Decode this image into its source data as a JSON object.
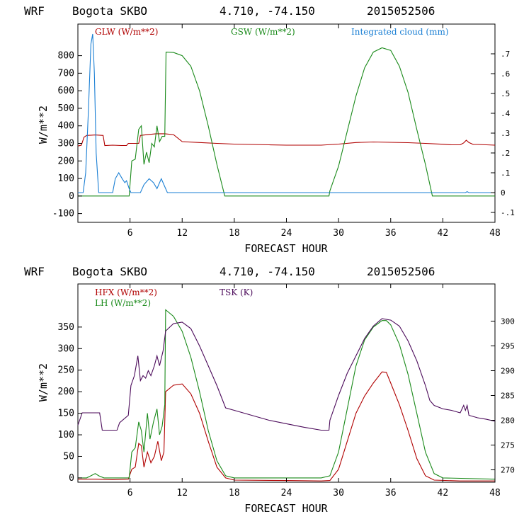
{
  "chart_data": [
    {
      "type": "line",
      "header": {
        "model": "WRF",
        "station": "Bogota SKBO",
        "coords": "4.710, -74.150",
        "run": "2015052506"
      },
      "xlabel": "FORECAST HOUR",
      "ylabel": "W/m**2",
      "xlim": [
        0,
        48
      ],
      "x_ticks": [
        "6",
        "12",
        "18",
        "24",
        "30",
        "36",
        "42",
        "48"
      ],
      "ylim": [
        -150,
        980
      ],
      "y_ticks": [
        "-100",
        "0",
        "100",
        "200",
        "300",
        "400",
        "500",
        "600",
        "700",
        "800"
      ],
      "y2lim": [
        -0.15,
        0.85
      ],
      "y2_ticks": [
        "-.1",
        "0",
        ".1",
        ".2",
        ".3",
        ".4",
        ".5",
        ".6",
        ".7"
      ],
      "legend": [
        {
          "label": "GLW (W/m**2)",
          "color": "#b00000"
        },
        {
          "label": "GSW (W/m**2)",
          "color": "#1a8a1a"
        },
        {
          "label": "Integrated cloud (mm)",
          "color": "#1a7fd4"
        }
      ],
      "series": [
        {
          "name": "GLW (W/m**2)",
          "color": "#b00000",
          "axis": "left",
          "points": [
            [
              0,
              285
            ],
            [
              0.4,
              290
            ],
            [
              0.7,
              335
            ],
            [
              1,
              345
            ],
            [
              2,
              348
            ],
            [
              2.9,
              345
            ],
            [
              3.1,
              288
            ],
            [
              4,
              290
            ],
            [
              5,
              288
            ],
            [
              5.6,
              288
            ],
            [
              5.8,
              300
            ],
            [
              6.5,
              300
            ],
            [
              7,
              300
            ],
            [
              7.2,
              345
            ],
            [
              8,
              350
            ],
            [
              9,
              355
            ],
            [
              10,
              355
            ],
            [
              11,
              350
            ],
            [
              12,
              310
            ],
            [
              14,
              305
            ],
            [
              16,
              300
            ],
            [
              18,
              296
            ],
            [
              20,
              294
            ],
            [
              22,
              292
            ],
            [
              24,
              290
            ],
            [
              26,
              290
            ],
            [
              28,
              290
            ],
            [
              30,
              296
            ],
            [
              32,
              305
            ],
            [
              34,
              308
            ],
            [
              36,
              306
            ],
            [
              38,
              304
            ],
            [
              40,
              300
            ],
            [
              42,
              295
            ],
            [
              43,
              292
            ],
            [
              44,
              292
            ],
            [
              44.4,
              303
            ],
            [
              44.7,
              318
            ],
            [
              45,
              305
            ],
            [
              45.5,
              294
            ],
            [
              46,
              294
            ],
            [
              48,
              290
            ]
          ]
        },
        {
          "name": "GSW (W/m**2)",
          "color": "#1a8a1a",
          "axis": "left",
          "points": [
            [
              0,
              0
            ],
            [
              5.9,
              0
            ],
            [
              6.2,
              200
            ],
            [
              6.6,
              210
            ],
            [
              7.0,
              380
            ],
            [
              7.3,
              400
            ],
            [
              7.6,
              180
            ],
            [
              7.9,
              250
            ],
            [
              8.2,
              190
            ],
            [
              8.5,
              300
            ],
            [
              8.8,
              280
            ],
            [
              9.1,
              400
            ],
            [
              9.4,
              310
            ],
            [
              9.7,
              340
            ],
            [
              10.0,
              340
            ],
            [
              10.15,
              820
            ],
            [
              11,
              818
            ],
            [
              12,
              800
            ],
            [
              13,
              740
            ],
            [
              14,
              600
            ],
            [
              15,
              400
            ],
            [
              16,
              180
            ],
            [
              16.9,
              0
            ],
            [
              28.9,
              0
            ],
            [
              29,
              30
            ],
            [
              30,
              170
            ],
            [
              31,
              370
            ],
            [
              32,
              570
            ],
            [
              33,
              730
            ],
            [
              34,
              820
            ],
            [
              35,
              845
            ],
            [
              36,
              830
            ],
            [
              37,
              740
            ],
            [
              38,
              590
            ],
            [
              39,
              380
            ],
            [
              40,
              180
            ],
            [
              40.8,
              0
            ],
            [
              48,
              0
            ]
          ]
        },
        {
          "name": "Integrated cloud (mm)",
          "color": "#1a7fd4",
          "axis": "right",
          "points": [
            [
              0,
              0
            ],
            [
              0.6,
              0
            ],
            [
              0.9,
              0.1
            ],
            [
              1.2,
              0.4
            ],
            [
              1.5,
              0.75
            ],
            [
              1.7,
              0.8
            ],
            [
              1.9,
              0.6
            ],
            [
              2.1,
              0.2
            ],
            [
              2.4,
              0
            ],
            [
              4,
              0
            ],
            [
              4.3,
              0.07
            ],
            [
              4.7,
              0.1
            ],
            [
              5.1,
              0.07
            ],
            [
              5.4,
              0.05
            ],
            [
              5.6,
              0.06
            ],
            [
              5.9,
              0.02
            ],
            [
              6.1,
              0
            ],
            [
              7.2,
              0
            ],
            [
              7.6,
              0.04
            ],
            [
              8.2,
              0.07
            ],
            [
              8.7,
              0.05
            ],
            [
              9.1,
              0.02
            ],
            [
              9.6,
              0.07
            ],
            [
              10.0,
              0.03
            ],
            [
              10.3,
              0
            ],
            [
              44.6,
              0
            ],
            [
              44.8,
              0.005
            ],
            [
              45,
              0
            ],
            [
              48,
              0
            ]
          ]
        }
      ]
    },
    {
      "type": "line",
      "header": {
        "model": "WRF",
        "station": "Bogota SKBO",
        "coords": "4.710, -74.150",
        "run": "2015052506"
      },
      "xlabel": "FORECAST HOUR",
      "ylabel": "W/m**2",
      "xlim": [
        0,
        48
      ],
      "x_ticks": [
        "6",
        "12",
        "18",
        "24",
        "30",
        "36",
        "42",
        "48"
      ],
      "ylim": [
        -10,
        450
      ],
      "y_ticks": [
        "0",
        "50",
        "100",
        "150",
        "200",
        "250",
        "300",
        "350"
      ],
      "y2lim": [
        267.5,
        307.5
      ],
      "y2_ticks": [
        "270",
        "275",
        "280",
        "285",
        "290",
        "295",
        "300"
      ],
      "legend": [
        {
          "label": "HFX (W/m**2)",
          "color": "#b00000"
        },
        {
          "label": "LH (W/m**2)",
          "color": "#1a8a1a"
        },
        {
          "label": "TSK (K)",
          "color": "#4b0a5a"
        }
      ],
      "series": [
        {
          "name": "HFX (W/m**2)",
          "color": "#b00000",
          "axis": "left",
          "points": [
            [
              0,
              -3
            ],
            [
              2,
              -3
            ],
            [
              4,
              -4
            ],
            [
              5.8,
              -3
            ],
            [
              6.2,
              20
            ],
            [
              6.6,
              25
            ],
            [
              7.0,
              80
            ],
            [
              7.3,
              75
            ],
            [
              7.6,
              25
            ],
            [
              8,
              60
            ],
            [
              8.4,
              35
            ],
            [
              8.8,
              50
            ],
            [
              9.2,
              85
            ],
            [
              9.6,
              40
            ],
            [
              9.9,
              60
            ],
            [
              10.1,
              200
            ],
            [
              11,
              215
            ],
            [
              12,
              218
            ],
            [
              13,
              195
            ],
            [
              14,
              150
            ],
            [
              15,
              85
            ],
            [
              16,
              25
            ],
            [
              17,
              0
            ],
            [
              18,
              -5
            ],
            [
              24,
              -6
            ],
            [
              28,
              -7
            ],
            [
              29,
              -6
            ],
            [
              30,
              20
            ],
            [
              31,
              85
            ],
            [
              32,
              150
            ],
            [
              33,
              190
            ],
            [
              34,
              220
            ],
            [
              35,
              246
            ],
            [
              35.5,
              245
            ],
            [
              36,
              220
            ],
            [
              37,
              170
            ],
            [
              38,
              110
            ],
            [
              39,
              45
            ],
            [
              40,
              5
            ],
            [
              41,
              -5
            ],
            [
              44,
              -7
            ],
            [
              48,
              -7
            ]
          ]
        },
        {
          "name": "LH (W/m**2)",
          "color": "#1a8a1a",
          "axis": "left",
          "points": [
            [
              0,
              0
            ],
            [
              1,
              0
            ],
            [
              1.5,
              5
            ],
            [
              2,
              10
            ],
            [
              2.4,
              5
            ],
            [
              3,
              0
            ],
            [
              5.9,
              0
            ],
            [
              6.2,
              60
            ],
            [
              6.6,
              70
            ],
            [
              7,
              130
            ],
            [
              7.3,
              110
            ],
            [
              7.6,
              60
            ],
            [
              8,
              150
            ],
            [
              8.3,
              90
            ],
            [
              8.7,
              130
            ],
            [
              9.1,
              160
            ],
            [
              9.4,
              100
            ],
            [
              9.7,
              120
            ],
            [
              10,
              170
            ],
            [
              10.1,
              390
            ],
            [
              11,
              375
            ],
            [
              12,
              340
            ],
            [
              13,
              280
            ],
            [
              14,
              200
            ],
            [
              15,
              110
            ],
            [
              16,
              40
            ],
            [
              17,
              5
            ],
            [
              18,
              0
            ],
            [
              28,
              0
            ],
            [
              29,
              5
            ],
            [
              30,
              60
            ],
            [
              31,
              160
            ],
            [
              32,
              260
            ],
            [
              33,
              320
            ],
            [
              34,
              350
            ],
            [
              35,
              365
            ],
            [
              35.5,
              365
            ],
            [
              36,
              355
            ],
            [
              37,
              310
            ],
            [
              38,
              240
            ],
            [
              39,
              150
            ],
            [
              40,
              60
            ],
            [
              41,
              10
            ],
            [
              42,
              0
            ],
            [
              48,
              -3
            ]
          ]
        },
        {
          "name": "TSK (K)",
          "color": "#4b0a5a",
          "axis": "right",
          "points": [
            [
              0,
              279
            ],
            [
              0.5,
              281.5
            ],
            [
              1,
              281.5
            ],
            [
              2.5,
              281.5
            ],
            [
              2.8,
              278
            ],
            [
              3.5,
              278
            ],
            [
              4.5,
              278
            ],
            [
              4.8,
              279.5
            ],
            [
              5.8,
              281
            ],
            [
              6.1,
              287
            ],
            [
              6.5,
              289
            ],
            [
              6.9,
              293
            ],
            [
              7.2,
              288
            ],
            [
              7.5,
              289
            ],
            [
              7.8,
              288.5
            ],
            [
              8.1,
              290
            ],
            [
              8.4,
              289
            ],
            [
              8.8,
              291
            ],
            [
              9.1,
              293
            ],
            [
              9.4,
              291
            ],
            [
              9.8,
              294
            ],
            [
              10.1,
              298
            ],
            [
              11,
              299.5
            ],
            [
              12,
              299.8
            ],
            [
              13,
              298.5
            ],
            [
              14,
              295
            ],
            [
              15,
              291
            ],
            [
              16,
              287
            ],
            [
              17,
              282.5
            ],
            [
              18,
              282
            ],
            [
              20,
              281
            ],
            [
              22,
              280
            ],
            [
              24,
              279.3
            ],
            [
              26,
              278.6
            ],
            [
              28,
              278
            ],
            [
              28.9,
              278
            ],
            [
              29,
              280
            ],
            [
              30,
              285
            ],
            [
              31,
              289.5
            ],
            [
              32,
              293
            ],
            [
              33,
              296.5
            ],
            [
              34,
              299
            ],
            [
              35,
              300.5
            ],
            [
              36,
              300.2
            ],
            [
              37,
              299
            ],
            [
              38,
              296
            ],
            [
              39,
              292
            ],
            [
              40,
              287
            ],
            [
              40.5,
              284
            ],
            [
              41,
              283
            ],
            [
              42,
              282.3
            ],
            [
              43,
              282
            ],
            [
              44,
              281.5
            ],
            [
              44.4,
              283
            ],
            [
              44.6,
              282
            ],
            [
              44.8,
              283
            ],
            [
              45,
              281
            ],
            [
              46,
              280.5
            ],
            [
              47,
              280.2
            ],
            [
              48,
              279.8
            ]
          ]
        }
      ]
    }
  ]
}
